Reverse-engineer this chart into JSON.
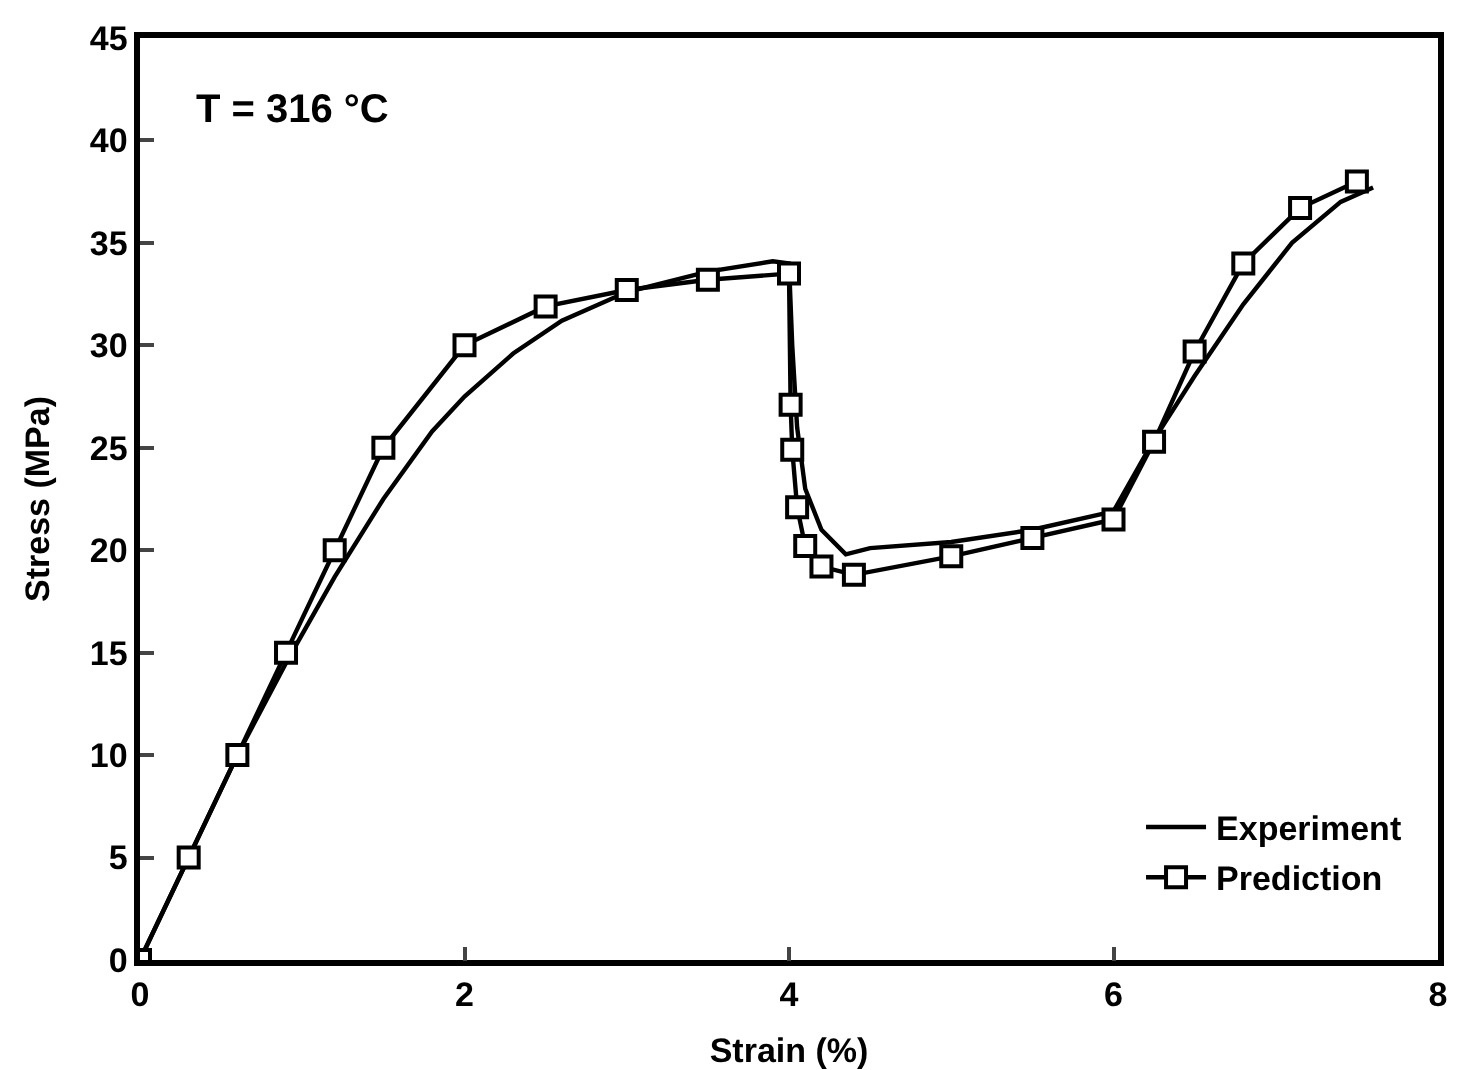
{
  "chart_data": {
    "type": "line",
    "xlabel": "Strain (%)",
    "ylabel": "Stress (MPa)",
    "annotations": [
      "T = 316 °C"
    ],
    "xlim": [
      0,
      8
    ],
    "xticks": [
      0,
      2,
      4,
      6,
      8
    ],
    "ylim": [
      0,
      45
    ],
    "yticks": [
      0,
      5,
      10,
      15,
      20,
      25,
      30,
      35,
      40,
      45
    ],
    "grid": false,
    "legend": "bottom right",
    "series": [
      {
        "name": "Experiment",
        "color": "#000000",
        "marker": "none",
        "x": [
          0,
          0.3,
          0.6,
          0.9,
          1.2,
          1.5,
          1.8,
          2,
          2.3,
          2.6,
          3,
          3.5,
          3.9,
          4,
          4.02,
          4.05,
          4.1,
          4.2,
          4.35,
          4.5,
          5,
          5.5,
          6,
          6.25,
          6.5,
          6.8,
          7.1,
          7.4,
          7.6
        ],
        "values": [
          0,
          5,
          10,
          14.5,
          18.7,
          22.5,
          25.8,
          27.5,
          29.6,
          31.2,
          32.6,
          33.6,
          34.1,
          34,
          30,
          26,
          23,
          21,
          19.8,
          20.1,
          20.4,
          21,
          21.9,
          25.4,
          28.5,
          32,
          35,
          37,
          37.7
        ]
      },
      {
        "name": "Prediction",
        "color": "#000000",
        "marker": "square",
        "x": [
          0,
          0.3,
          0.6,
          0.9,
          1.2,
          1.5,
          2,
          2.5,
          3,
          3.5,
          4,
          4.01,
          4.02,
          4.05,
          4.1,
          4.2,
          4.4,
          5,
          5.5,
          6,
          6.25,
          6.5,
          6.8,
          7.15,
          7.5
        ],
        "values": [
          0,
          5,
          10,
          15,
          20,
          25,
          30,
          31.9,
          32.7,
          33.2,
          33.5,
          27.1,
          24.9,
          22.1,
          20.2,
          19.2,
          18.8,
          19.7,
          20.6,
          21.5,
          25.3,
          29.7,
          34,
          36.7,
          38
        ]
      }
    ]
  }
}
